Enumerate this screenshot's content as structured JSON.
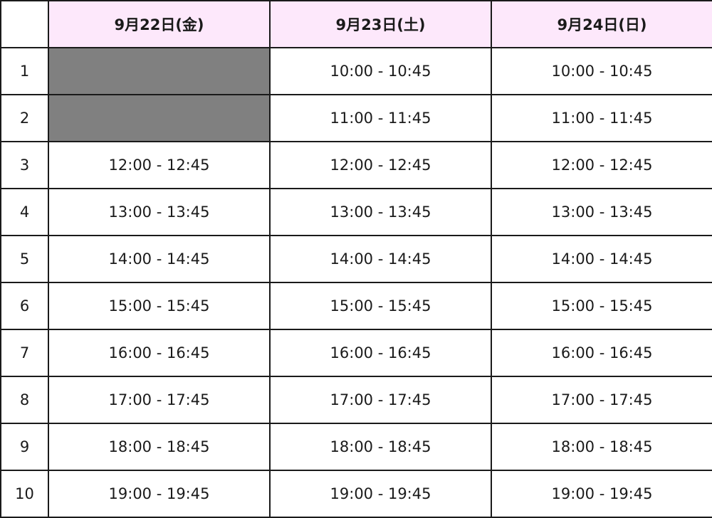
{
  "table": {
    "headers": [
      "",
      "9月22日(金)",
      "9月23日(土)",
      "9月24日(日)"
    ],
    "rows": [
      {
        "num": "1",
        "slots": [
          null,
          "10:00 - 10:45",
          "10:00 - 10:45"
        ]
      },
      {
        "num": "2",
        "slots": [
          null,
          "11:00 - 11:45",
          "11:00 - 11:45"
        ]
      },
      {
        "num": "3",
        "slots": [
          "12:00 - 12:45",
          "12:00 - 12:45",
          "12:00 - 12:45"
        ]
      },
      {
        "num": "4",
        "slots": [
          "13:00 - 13:45",
          "13:00 - 13:45",
          "13:00 - 13:45"
        ]
      },
      {
        "num": "5",
        "slots": [
          "14:00 - 14:45",
          "14:00 - 14:45",
          "14:00 - 14:45"
        ]
      },
      {
        "num": "6",
        "slots": [
          "15:00 - 15:45",
          "15:00 - 15:45",
          "15:00 - 15:45"
        ]
      },
      {
        "num": "7",
        "slots": [
          "16:00 - 16:45",
          "16:00 - 16:45",
          "16:00 - 16:45"
        ]
      },
      {
        "num": "8",
        "slots": [
          "17:00 - 17:45",
          "17:00 - 17:45",
          "17:00 - 17:45"
        ]
      },
      {
        "num": "9",
        "slots": [
          "18:00 - 18:45",
          "18:00 - 18:45",
          "18:00 - 18:45"
        ]
      },
      {
        "num": "10",
        "slots": [
          "19:00 - 19:45",
          "19:00 - 19:45",
          "19:00 - 19:45"
        ]
      }
    ]
  },
  "colors": {
    "header_bg": "#fde8fb",
    "unavailable": "#808080",
    "border": "#1a1a1a"
  }
}
